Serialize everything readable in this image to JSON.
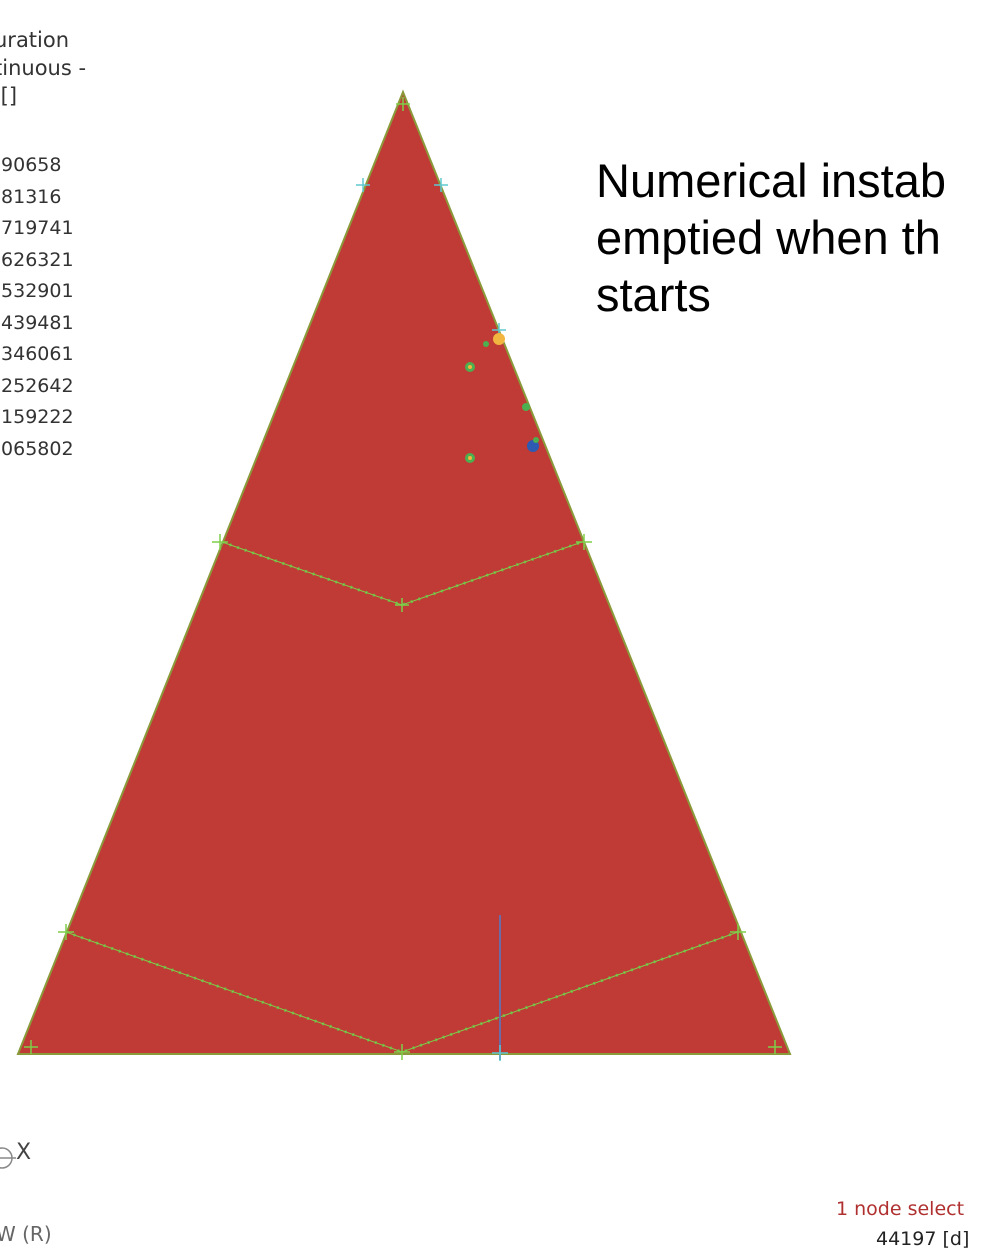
{
  "legend": {
    "header_lines": [
      "uration",
      "tinuous -",
      " []"
    ],
    "values": [
      ".90658",
      ".81316",
      ".719741",
      ".626321",
      ".532901",
      ".439481",
      ".346061",
      ".252642",
      ".159222",
      ".065802"
    ]
  },
  "annotation": {
    "lines": [
      "Numerical instab",
      "emptied when th",
      "starts"
    ]
  },
  "axis": {
    "label": "X",
    "view": "W (R)"
  },
  "status": {
    "selection": "1 node select",
    "node_id": "44197 [d]"
  },
  "colors": {
    "mesh_fill": "#c03a36",
    "mesh_edge": "#8a9a3a",
    "node_marker": "#7ecf4a",
    "node_marker_alt": "#5fc8d0",
    "anomaly_green": "#4caf50",
    "anomaly_yellow": "#f2b540",
    "anomaly_blue": "#2d5bb3",
    "axis_line": "#6b6ba8",
    "status_text": "#b03030"
  }
}
